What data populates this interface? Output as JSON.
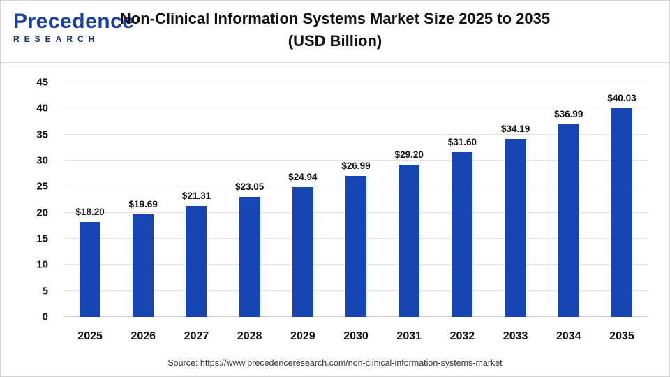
{
  "header": {
    "logo_line1": "Precedence",
    "logo_line2": "RESEARCH",
    "title_line1": "Non-Clinical Information Systems Market Size 2025 to 2035",
    "title_line2": "(USD Billion)"
  },
  "footer": {
    "source": "Source: https://www.precedenceresearch.com/non-clinical-information-systems-market"
  },
  "chart_data": {
    "type": "bar",
    "title": "Non-Clinical Information Systems Market Size 2025 to 2035 (USD Billion)",
    "categories": [
      "2025",
      "2026",
      "2027",
      "2028",
      "2029",
      "2030",
      "2031",
      "2032",
      "2033",
      "2034",
      "2035"
    ],
    "values": [
      18.2,
      19.69,
      21.31,
      23.05,
      24.94,
      26.99,
      29.2,
      31.6,
      34.19,
      36.99,
      40.03
    ],
    "value_labels": [
      "$18.20",
      "$19.69",
      "$21.31",
      "$23.05",
      "$24.94",
      "$26.99",
      "$29.20",
      "$31.60",
      "$34.19",
      "$36.99",
      "$40.03"
    ],
    "xlabel": "",
    "ylabel": "",
    "ylim": [
      0,
      45
    ],
    "ytick_step": 5,
    "bar_color": "#1546b4",
    "grid": true,
    "legend": "none"
  }
}
